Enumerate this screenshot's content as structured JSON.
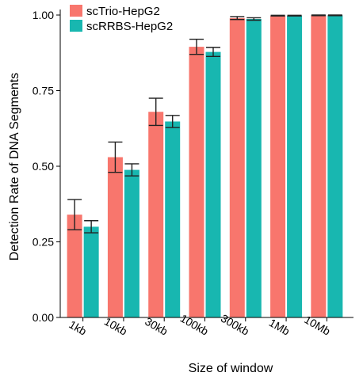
{
  "chart_data": {
    "type": "bar",
    "xlabel": "Size of window",
    "ylabel": "Detection Rate of DNA Segments",
    "categories": [
      "1kb",
      "10kb",
      "30kb",
      "100kb",
      "300kb",
      "1Mb",
      "10Mb"
    ],
    "ylim": [
      0,
      1.0
    ],
    "yticks": [
      "0.00",
      "0.25",
      "0.50",
      "0.75",
      "1.00"
    ],
    "grid": false,
    "legend_position": "top-left",
    "series": [
      {
        "name": "scTrio-HepG2",
        "color": "#F8766D",
        "values": [
          0.34,
          0.53,
          0.68,
          0.895,
          0.99,
          0.998,
          0.999
        ],
        "error": [
          0.05,
          0.05,
          0.045,
          0.025,
          0.005,
          0.001,
          0.001
        ]
      },
      {
        "name": "scRRBS-HepG2",
        "color": "#18B7B0",
        "values": [
          0.3,
          0.488,
          0.648,
          0.878,
          0.987,
          0.998,
          0.999
        ],
        "error": [
          0.02,
          0.02,
          0.02,
          0.015,
          0.004,
          0.001,
          0.001
        ]
      }
    ]
  }
}
